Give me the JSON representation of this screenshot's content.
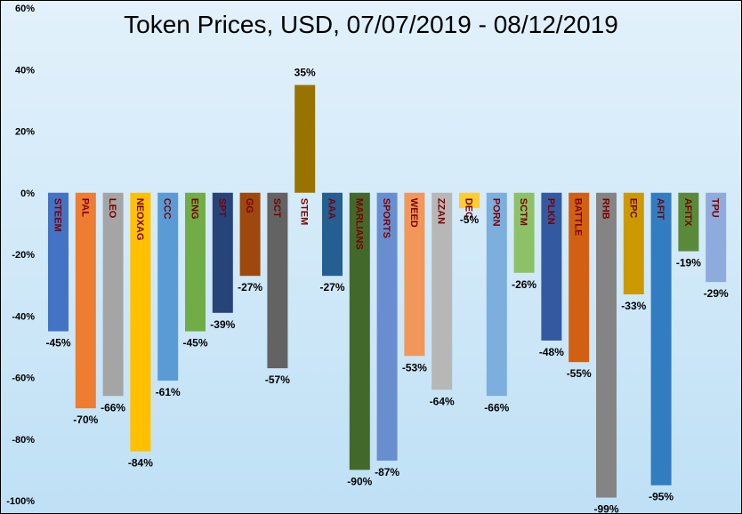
{
  "chart_data": {
    "type": "bar",
    "title": "Token Prices, USD, 07/07/2019 - 08/12/2019",
    "xlabel": "",
    "ylabel": "",
    "ylim": [
      -100,
      60
    ],
    "yticks": [
      60,
      40,
      20,
      0,
      -20,
      -40,
      -60,
      -80,
      -100
    ],
    "ytick_labels": [
      "60%",
      "40%",
      "20%",
      "0%",
      "-20%",
      "-40%",
      "-60%",
      "-80%",
      "-100%"
    ],
    "grid": false,
    "legend": "none",
    "categories": [
      "STEEM",
      "PAL",
      "LEO",
      "NEOXAG",
      "CCC",
      "ENG",
      "SPT",
      "GG",
      "SCT",
      "STEM",
      "AAA",
      "MARLIANS",
      "SPORTS",
      "WEED",
      "ZZAN",
      "DEC",
      "PORN",
      "SCTM",
      "PLKN",
      "BATTLE",
      "RHB",
      "EPC",
      "AFIT",
      "AFITX",
      "TPU"
    ],
    "values": [
      -45,
      -70,
      -66,
      -84,
      -61,
      -45,
      -39,
      -27,
      -57,
      35,
      -27,
      -90,
      -87,
      -53,
      -64,
      -5,
      -66,
      -26,
      -48,
      -55,
      -99,
      -33,
      -95,
      -19,
      -29
    ],
    "data_labels": [
      "-45%",
      "-70%",
      "-66%",
      "-84%",
      "-61%",
      "-45%",
      "-39%",
      "-27%",
      "-57%",
      "35%",
      "-27%",
      "-90%",
      "-87%",
      "-53%",
      "-64%",
      "-5%",
      "-66%",
      "-26%",
      "-48%",
      "-55%",
      "-99%",
      "-33%",
      "-95%",
      "-19%",
      "-29%"
    ],
    "colors": [
      "#4472c4",
      "#ed7d31",
      "#a5a5a5",
      "#ffc000",
      "#5b9bd5",
      "#70ad47",
      "#264478",
      "#9e480e",
      "#636363",
      "#997300",
      "#255e91",
      "#43682b",
      "#698ed0",
      "#f1975a",
      "#b7b7b7",
      "#ffcd33",
      "#7cafdd",
      "#8cc168",
      "#335aa1",
      "#d26012",
      "#848484",
      "#cc9a00",
      "#327dc2",
      "#5a8a39",
      "#8faadc"
    ]
  }
}
